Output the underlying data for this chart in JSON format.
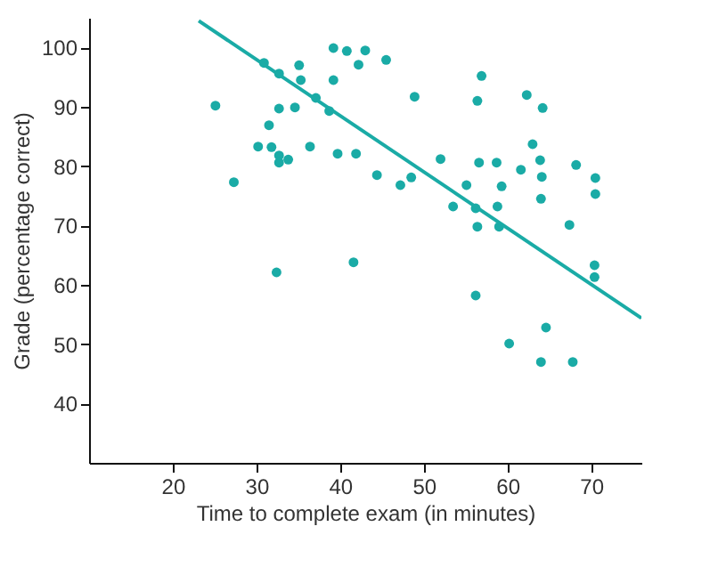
{
  "chart_data": {
    "type": "scatter",
    "xlabel": "Time to complete exam (in minutes)",
    "ylabel": "Grade (percentage correct)",
    "xlim": [
      10,
      76
    ],
    "ylim": [
      30,
      105
    ],
    "xticks": [
      20,
      30,
      40,
      50,
      60,
      70
    ],
    "yticks": [
      40,
      50,
      60,
      70,
      80,
      90,
      100
    ],
    "grid": false,
    "series": [
      {
        "color": "#1aaba6",
        "marker": "circle",
        "x": [
          25.1,
          30.9,
          32.7,
          35.1,
          35.3,
          39.2,
          40.8,
          43.0,
          45.5,
          42.2,
          39.2,
          37.1,
          38.7,
          32.7,
          34.6,
          31.5,
          30.2,
          31.8,
          32.7,
          32.7,
          33.8,
          36.4,
          39.7,
          41.9,
          44.4,
          47.2,
          27.3,
          32.4,
          41.6,
          48.9,
          56.9,
          56.4,
          62.3,
          64.2,
          48.5,
          52.0,
          56.6,
          58.7,
          63.0,
          63.9,
          61.6,
          68.2,
          70.5,
          70.5,
          64.1,
          55.1,
          59.3,
          64.0,
          53.5,
          56.2,
          58.8,
          56.4,
          59.0,
          67.4,
          70.4,
          70.4,
          56.2,
          64.6,
          60.2,
          64.0,
          67.8
        ],
        "values": [
          90.2,
          97.4,
          95.6,
          97.0,
          94.5,
          99.9,
          99.4,
          99.5,
          97.9,
          97.1,
          94.5,
          91.5,
          89.3,
          89.7,
          89.9,
          86.9,
          83.3,
          83.2,
          81.8,
          80.6,
          81.1,
          83.3,
          82.1,
          82.1,
          78.5,
          76.8,
          77.3,
          62.1,
          63.8,
          91.7,
          95.2,
          91.0,
          92.0,
          89.8,
          78.1,
          81.2,
          80.6,
          80.6,
          83.7,
          81.0,
          79.4,
          80.2,
          78.0,
          75.3,
          78.2,
          76.8,
          76.6,
          74.5,
          73.2,
          72.9,
          73.2,
          69.8,
          69.8,
          70.1,
          63.3,
          61.3,
          58.2,
          52.8,
          50.1,
          47.0,
          47.0
        ]
      },
      {
        "type": "line",
        "marker": "none",
        "color": "#1aaba6",
        "x": [
          23.1,
          76.0
        ],
        "values": [
          104.5,
          54.4
        ]
      }
    ]
  }
}
